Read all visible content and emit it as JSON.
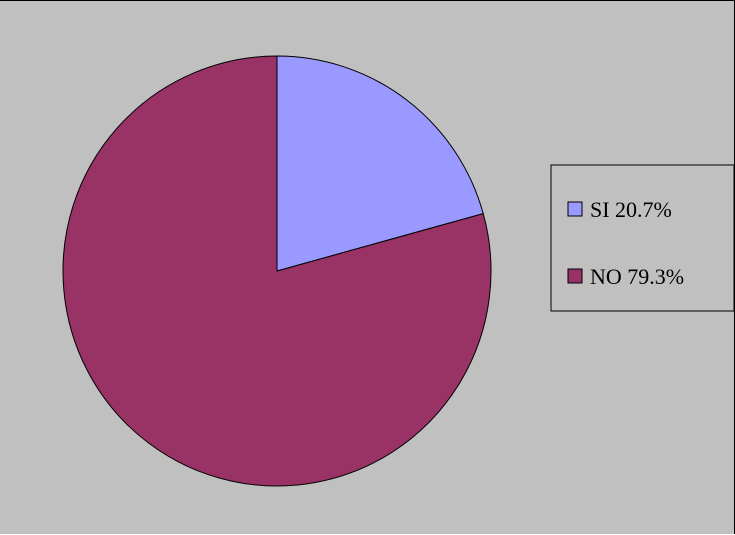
{
  "chart_data": {
    "type": "pie",
    "categories": [
      "SI",
      "NO"
    ],
    "values": [
      20.7,
      79.3
    ],
    "unit": "%",
    "colors": [
      "#9999ff",
      "#993366"
    ],
    "legend": [
      {
        "label": "SI 20.7%",
        "color": "#9999ff"
      },
      {
        "label": "NO 79.3%",
        "color": "#993366"
      }
    ],
    "legend_position": "right",
    "background": "#c0c0c0"
  }
}
